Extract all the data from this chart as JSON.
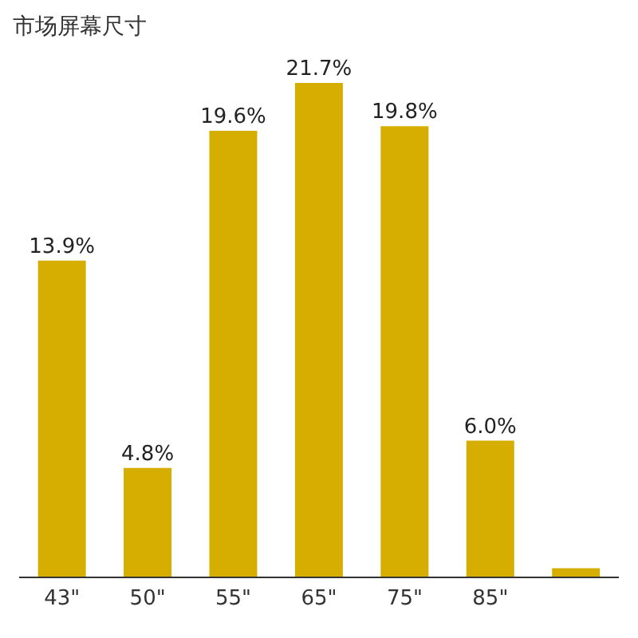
{
  "chart_data": {
    "type": "bar",
    "title": "市场屏幕尺寸",
    "categories": [
      "43\"",
      "50\"",
      "55\"",
      "65\"",
      "75\"",
      "85\"",
      null
    ],
    "values": [
      13.9,
      4.8,
      19.6,
      21.7,
      19.8,
      6.0,
      0.4
    ],
    "value_labels": [
      "13.9%",
      "4.8%",
      "19.6%",
      "21.7%",
      "19.8%",
      "6.0%",
      null
    ],
    "color": "#d6ae01",
    "grid": false,
    "legend": false
  }
}
